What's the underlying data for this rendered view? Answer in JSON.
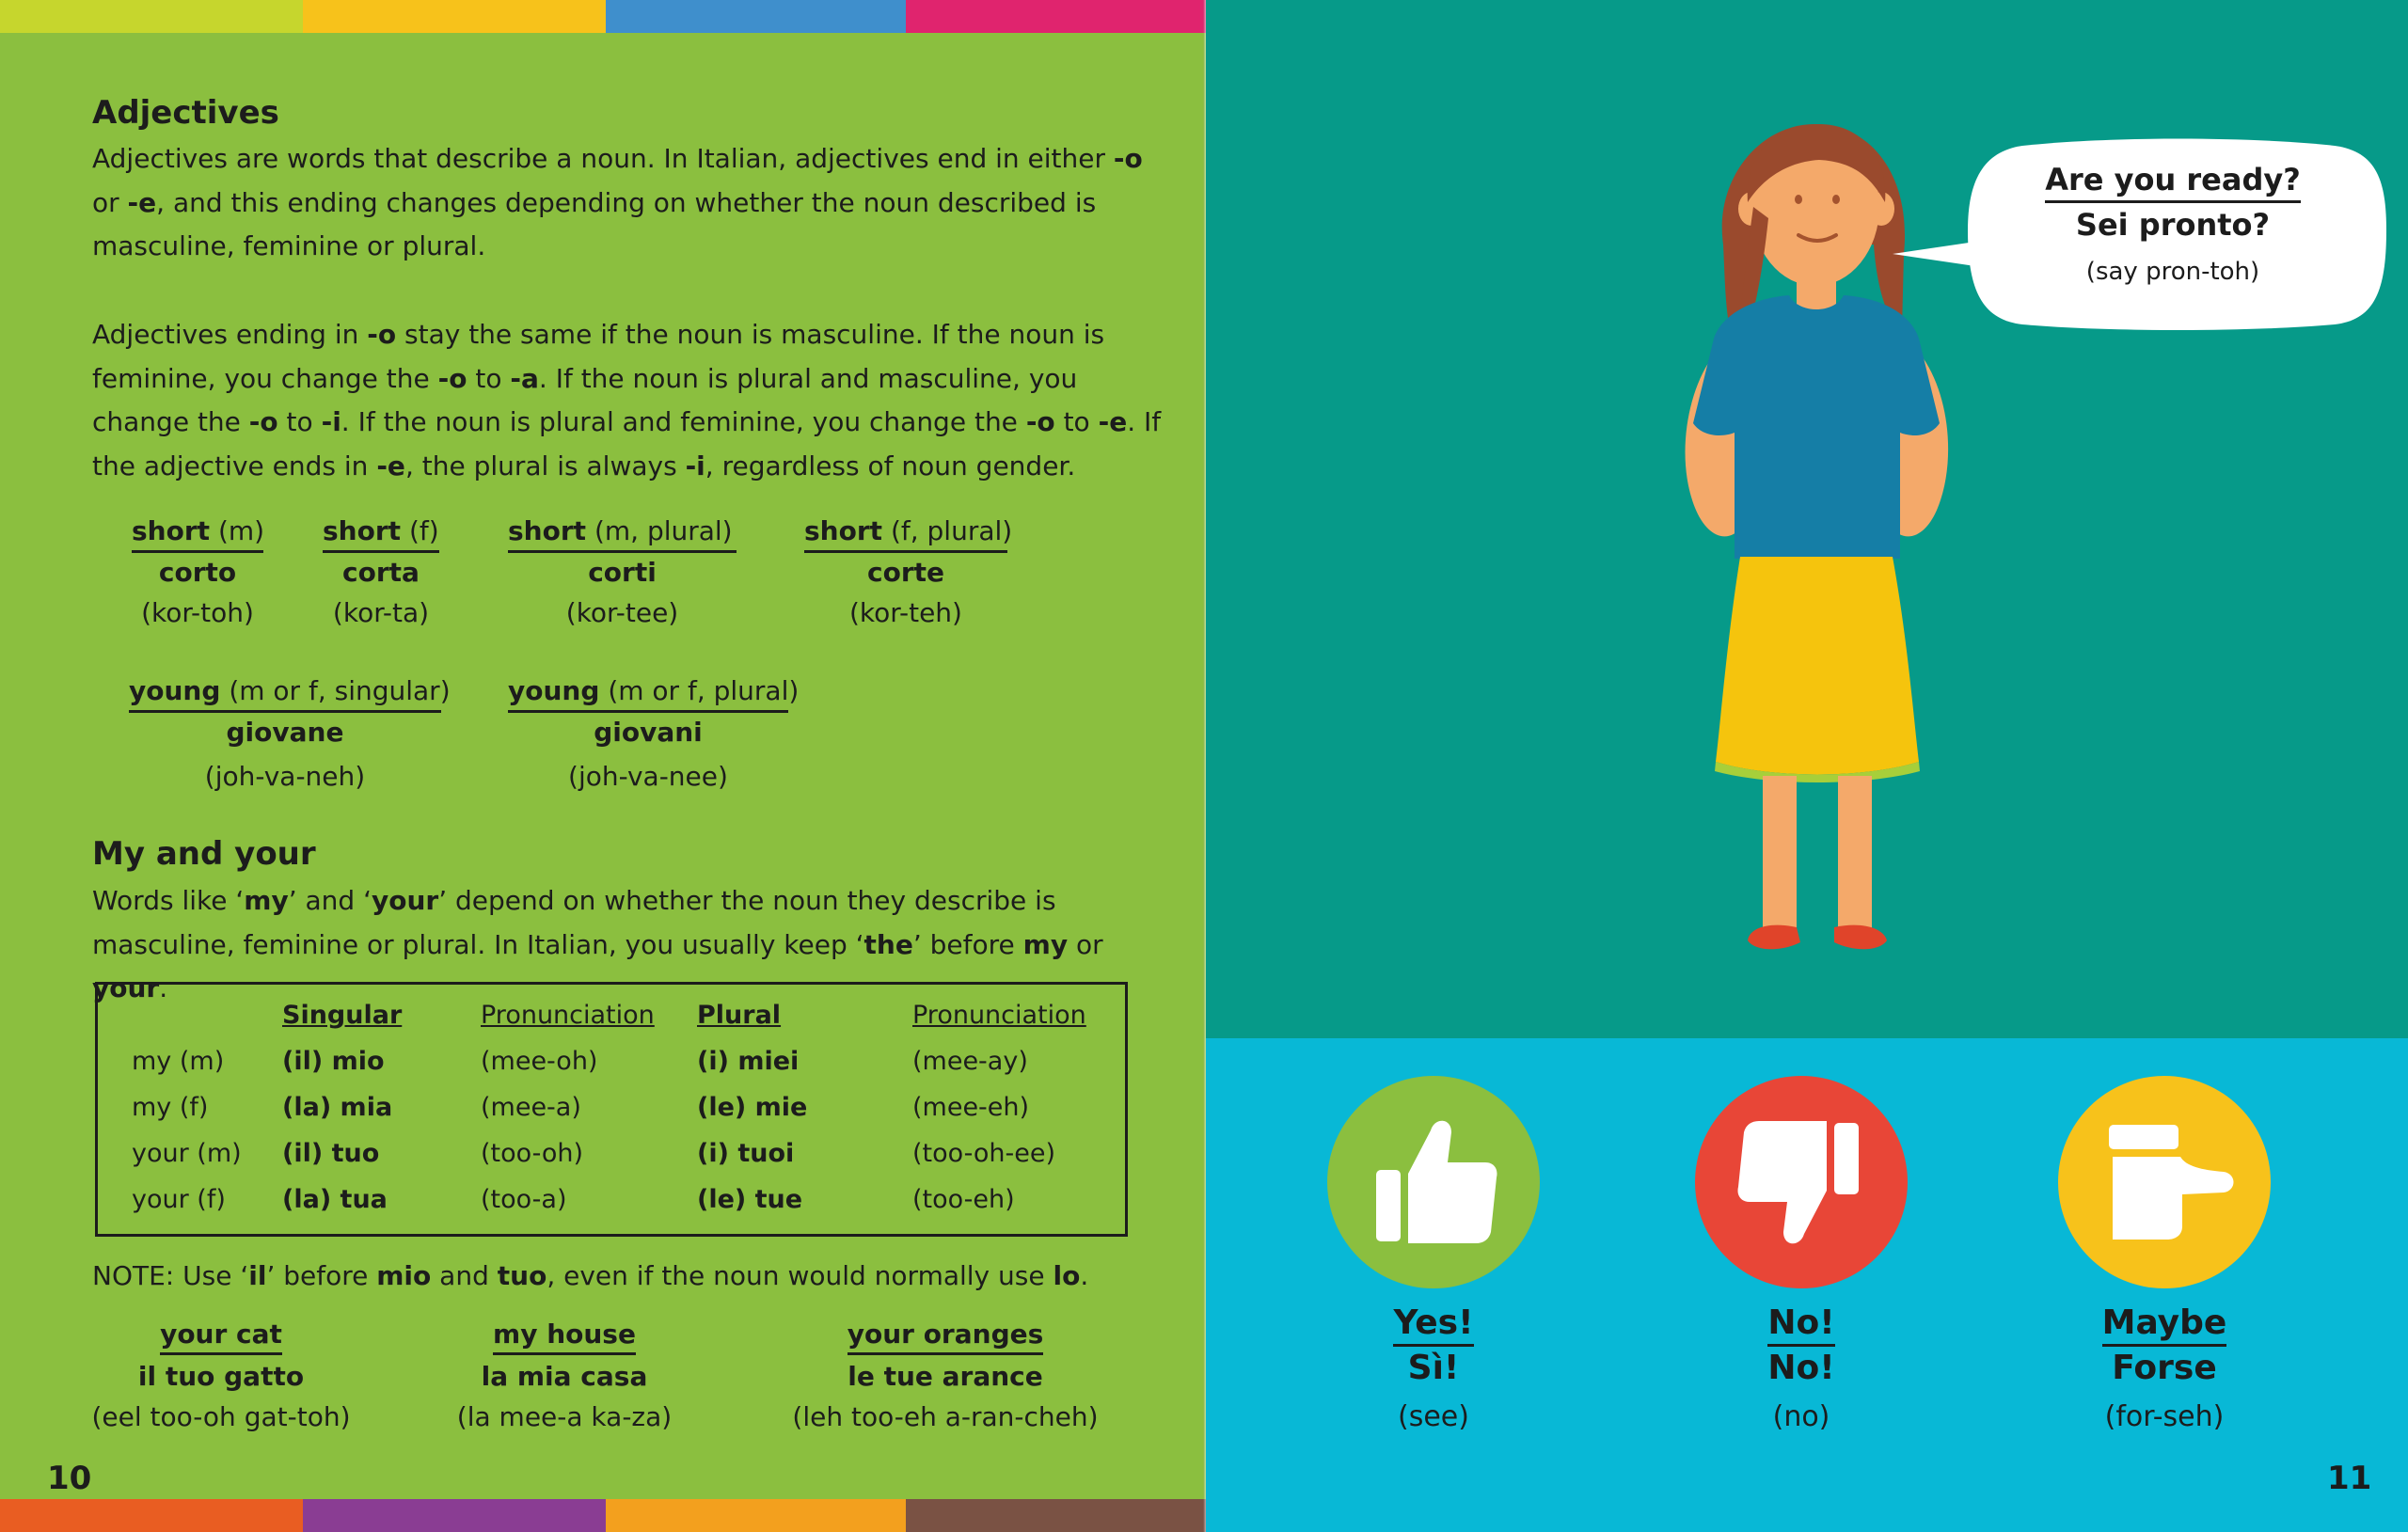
{
  "left_page": {
    "adjectives_title": "Adjectives",
    "adjectives_p1": [
      {
        "t": "Adjectives are words that describe a noun. In Italian, adjectives end in either ",
        "b": false
      },
      {
        "t": "-o",
        "b": true
      },
      {
        "t": " or ",
        "b": false
      },
      {
        "t": "-e",
        "b": true
      },
      {
        "t": ", and this ending changes depending on whether the noun described is masculine, feminine or plural.",
        "b": false
      }
    ],
    "adjectives_p2": [
      {
        "t": "Adjectives ending in ",
        "b": false
      },
      {
        "t": "-o",
        "b": true
      },
      {
        "t": " stay the same if the noun is masculine. If the noun is feminine, you change the ",
        "b": false
      },
      {
        "t": "-o",
        "b": true
      },
      {
        "t": " to ",
        "b": false
      },
      {
        "t": "-a",
        "b": true
      },
      {
        "t": ". If the noun is plural and masculine, you change the ",
        "b": false
      },
      {
        "t": "-o",
        "b": true
      },
      {
        "t": " to ",
        "b": false
      },
      {
        "t": "-i",
        "b": true
      },
      {
        "t": ". If the noun is plural and feminine, you change the ",
        "b": false
      },
      {
        "t": "-o",
        "b": true
      },
      {
        "t": " to ",
        "b": false
      },
      {
        "t": "-e",
        "b": true
      },
      {
        "t": ". If the adjective ends in ",
        "b": false
      },
      {
        "t": "-e",
        "b": true
      },
      {
        "t": ", the plural is always ",
        "b": false
      },
      {
        "t": "-i",
        "b": true
      },
      {
        "t": ", regardless of noun gender.",
        "b": false
      }
    ],
    "adjective_examples": [
      {
        "word_en": "short",
        "qual": "(m)",
        "word_it": "corto",
        "pron": "(kor-toh)"
      },
      {
        "word_en": "short",
        "qual": "(f)",
        "word_it": "corta",
        "pron": "(kor-ta)"
      },
      {
        "word_en": "short",
        "qual": "(m, plural)",
        "word_it": "corti",
        "pron": "(kor-tee)"
      },
      {
        "word_en": "short",
        "qual": "(f, plural)",
        "word_it": "corte",
        "pron": "(kor-teh)"
      },
      {
        "word_en": "young",
        "qual": "(m or f, singular)",
        "word_it": "giovane",
        "pron": "(joh-va-neh)"
      },
      {
        "word_en": "young",
        "qual": "(m or f, plural)",
        "word_it": "giovani",
        "pron": "(joh-va-nee)"
      }
    ],
    "myyour_title": "My and your",
    "myyour_p": [
      {
        "t": "Words like ‘",
        "b": false
      },
      {
        "t": "my",
        "b": true
      },
      {
        "t": "’ and ‘",
        "b": false
      },
      {
        "t": "your",
        "b": true
      },
      {
        "t": "’ depend on whether the noun they describe is masculine, feminine or plural. In Italian, you usually keep ‘",
        "b": false
      },
      {
        "t": "the",
        "b": true
      },
      {
        "t": "’ before ",
        "b": false
      },
      {
        "t": "my",
        "b": true
      },
      {
        "t": " or ",
        "b": false
      },
      {
        "t": "your",
        "b": true
      },
      {
        "t": ".",
        "b": false
      }
    ],
    "table": {
      "headers": [
        "Singular",
        "Pronunciation",
        "Plural",
        "Pronunciation"
      ],
      "rows": [
        [
          "my (m)",
          "(il) mio",
          "(mee-oh)",
          "(i) miei",
          "(mee-ay)"
        ],
        [
          "my (f)",
          "(la) mia",
          "(mee-a)",
          "(le) mie",
          "(mee-eh)"
        ],
        [
          "your (m)",
          "(il) tuo",
          "(too-oh)",
          "(i) tuoi",
          "(too-oh-ee)"
        ],
        [
          "your (f)",
          "(la) tua",
          "(too-a)",
          "(le) tue",
          "(too-eh)"
        ]
      ]
    },
    "note": [
      {
        "t": "NOTE: Use ‘",
        "b": false
      },
      {
        "t": "il",
        "b": true
      },
      {
        "t": "’ before ",
        "b": false
      },
      {
        "t": "mio",
        "b": true
      },
      {
        "t": " and ",
        "b": false
      },
      {
        "t": "tuo",
        "b": true
      },
      {
        "t": ", even if the noun would normally use ",
        "b": false
      },
      {
        "t": "lo",
        "b": true
      },
      {
        "t": ".",
        "b": false
      }
    ],
    "phrase_examples": [
      {
        "en": "your cat",
        "it": "il tuo gatto",
        "pron": "(eel too-oh gat-toh)"
      },
      {
        "en": "my house",
        "it": "la mia casa",
        "pron": "(la mee-a ka-za)"
      },
      {
        "en": "your oranges",
        "it": "le tue arance",
        "pron": "(leh too-eh a-ran-cheh)"
      }
    ],
    "page_number": "10"
  },
  "right_page": {
    "bubble": {
      "en": "Are you ready?",
      "it": "Sei pronto?",
      "pron": "(say pron-toh)"
    },
    "answers": [
      {
        "en": "Yes!",
        "it": "Sì!",
        "pron": "(see)",
        "icon": "thumbs-up-icon",
        "color": "#8bbf3f"
      },
      {
        "en": "No!",
        "it": "No!",
        "pron": "(no)",
        "icon": "thumbs-down-icon",
        "color": "#e84637"
      },
      {
        "en": "Maybe",
        "it": "Forse",
        "pron": "(for-seh)",
        "icon": "thumb-sideways-icon",
        "color": "#f7c21b"
      }
    ],
    "page_number": "11"
  },
  "colors": {
    "left_bg": "#8bbf3f",
    "teal_bg": "#069a89",
    "blue_bg": "#08b8d6"
  }
}
